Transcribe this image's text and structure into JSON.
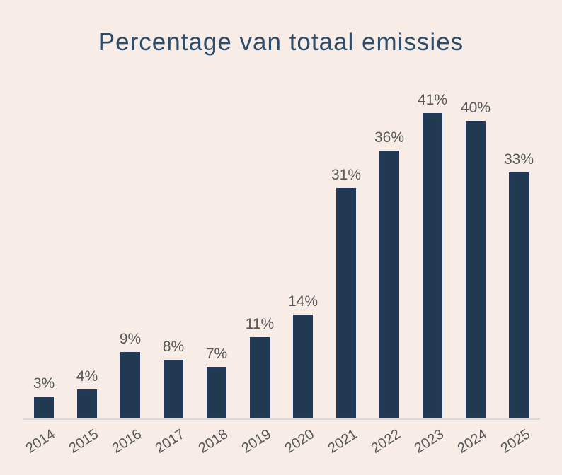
{
  "chart_data": {
    "type": "bar",
    "title": "Percentage van totaal emissies",
    "categories": [
      "2014",
      "2015",
      "2016",
      "2017",
      "2018",
      "2019",
      "2020",
      "2021",
      "2022",
      "2023",
      "2024",
      "2025"
    ],
    "values": [
      3,
      4,
      9,
      8,
      7,
      11,
      14,
      31,
      36,
      41,
      40,
      33
    ],
    "data_labels": [
      "3%",
      "4%",
      "9%",
      "8%",
      "7%",
      "11%",
      "14%",
      "31%",
      "36%",
      "41%",
      "40%",
      "33%"
    ],
    "xlabel": "",
    "ylabel": "",
    "ylim": [
      0,
      45
    ],
    "grid": false,
    "legend": false,
    "colors": {
      "background": "#f7ede6",
      "bar_fill": "#213a52",
      "bar_border": "#1f3864",
      "title": "#2e4d6b",
      "data_label": "#595959",
      "tick_label": "#595959",
      "axis_line": "#d9d9d9"
    }
  }
}
